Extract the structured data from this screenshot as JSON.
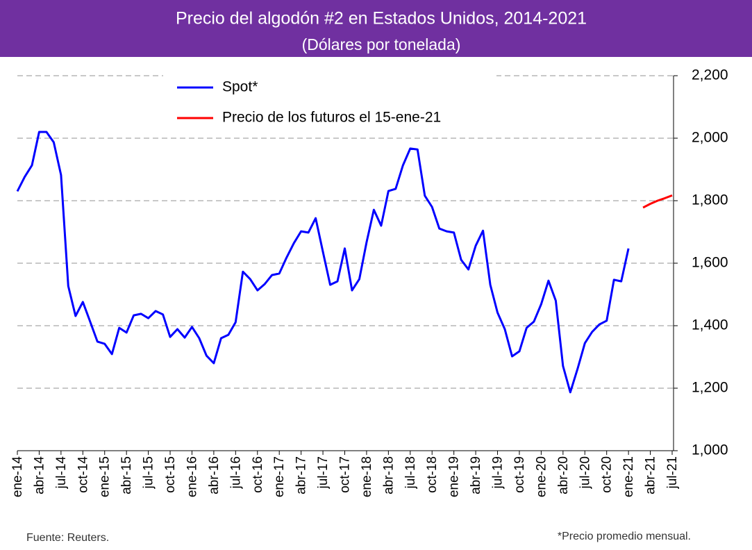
{
  "chart_data": {
    "type": "line",
    "title": "Precio del algodón #2 en Estados Unidos, 2014-2021",
    "subtitle": "(Dólares por tonelada)",
    "categories": [
      "ene-14",
      null,
      null,
      "abr-14",
      null,
      null,
      "jul-14",
      null,
      null,
      "oct-14",
      null,
      null,
      "ene-15",
      null,
      null,
      "abr-15",
      null,
      null,
      "jul-15",
      null,
      null,
      "oct-15",
      null,
      null,
      "ene-16",
      null,
      null,
      "abr-16",
      null,
      null,
      "jul-16",
      null,
      null,
      "oct-16",
      null,
      null,
      "ene-17",
      null,
      null,
      "abr-17",
      null,
      null,
      "jul-17",
      null,
      null,
      "oct-17",
      null,
      null,
      "ene-18",
      null,
      null,
      "abr-18",
      null,
      null,
      "jul-18",
      null,
      null,
      "oct-18",
      null,
      null,
      "ene-19",
      null,
      null,
      "abr-19",
      null,
      null,
      "jul-19",
      null,
      null,
      "oct-19",
      null,
      null,
      "ene-20",
      null,
      null,
      "abr-20",
      null,
      null,
      "jul-20",
      null,
      null,
      "oct-20",
      null,
      null,
      "ene-21",
      null,
      null,
      "abr-21",
      null,
      null,
      "jul-21"
    ],
    "series": [
      {
        "name": "Spot*",
        "color": "#0000ff",
        "values": [
          1830,
          1876,
          1913,
          2020,
          2020,
          1987,
          1882,
          1527,
          1431,
          1476,
          1413,
          1349,
          1342,
          1309,
          1393,
          1378,
          1433,
          1438,
          1424,
          1447,
          1436,
          1364,
          1389,
          1362,
          1396,
          1360,
          1304,
          1280,
          1360,
          1371,
          1411,
          1573,
          1549,
          1513,
          1533,
          1562,
          1567,
          1618,
          1664,
          1702,
          1698,
          1744,
          1636,
          1531,
          1542,
          1647,
          1513,
          1549,
          1667,
          1771,
          1720,
          1831,
          1838,
          1913,
          1967,
          1964,
          1816,
          1780,
          1711,
          1702,
          1698,
          1611,
          1580,
          1656,
          1704,
          1531,
          1442,
          1389,
          1302,
          1318,
          1393,
          1413,
          1469,
          1544,
          1480,
          1271,
          1187,
          1262,
          1344,
          1380,
          1404,
          1416,
          1547,
          1542,
          1647,
          null,
          null,
          null,
          null,
          null,
          null
        ]
      },
      {
        "name": "Precio de los futuros el 15-ene-21",
        "color": "#ff0000",
        "values": [
          null,
          null,
          null,
          null,
          null,
          null,
          null,
          null,
          null,
          null,
          null,
          null,
          null,
          null,
          null,
          null,
          null,
          null,
          null,
          null,
          null,
          null,
          null,
          null,
          null,
          null,
          null,
          null,
          null,
          null,
          null,
          null,
          null,
          null,
          null,
          null,
          null,
          null,
          null,
          null,
          null,
          null,
          null,
          null,
          null,
          null,
          null,
          null,
          null,
          null,
          null,
          null,
          null,
          null,
          null,
          null,
          null,
          null,
          null,
          null,
          null,
          null,
          null,
          null,
          null,
          null,
          null,
          null,
          null,
          null,
          null,
          null,
          null,
          null,
          null,
          null,
          null,
          null,
          null,
          null,
          null,
          null,
          null,
          null,
          null,
          null,
          1778,
          1790,
          1800,
          1808,
          1817
        ]
      }
    ],
    "ylim": [
      1000,
      2200
    ],
    "yticks": [
      {
        "value": 1000,
        "label": "1,000"
      },
      {
        "value": 1200,
        "label": "1,200"
      },
      {
        "value": 1400,
        "label": "1,400"
      },
      {
        "value": 1600,
        "label": "1,600"
      },
      {
        "value": 1800,
        "label": "1,800"
      },
      {
        "value": 2000,
        "label": "2,000"
      },
      {
        "value": 2200,
        "label": "2,200"
      }
    ],
    "grid": true,
    "legend": "top",
    "source": "Fuente: Reuters.",
    "note": "*Precio promedio mensual."
  }
}
